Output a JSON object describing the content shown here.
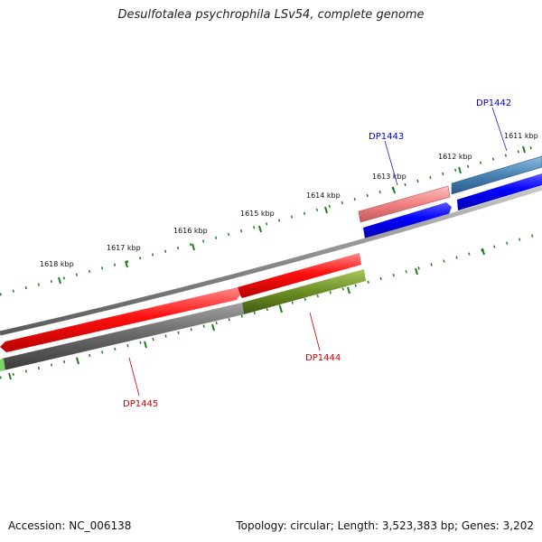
{
  "title": "Desulfotalea psychrophila LSv54, complete genome",
  "footer": {
    "accession": "Accession: NC_006138",
    "stats": "Topology: circular; Length: 3,523,383 bp; Genes: 3,202"
  },
  "colors": {
    "backbone": "#8a8a8a",
    "tick": "#1e7d1e",
    "forward_cds": "#ff0000",
    "reverse_cds": "#0000ff",
    "forward_label": "#cc0000",
    "reverse_label": "#0000cc",
    "gray_bar": "#666666",
    "olive_bar": "#6b8e23",
    "steelblue_bar": "#4682b4",
    "pink_bar": "#f08080",
    "green_bar": "#7cd36a"
  },
  "kbp_labels": [
    "1618 kbp",
    "1617 kbp",
    "1616 kbp",
    "1615 kbp",
    "1614 kbp",
    "1613 kbp",
    "1612 kbp",
    "1611 kbp"
  ],
  "gene_labels": [
    "DP1442",
    "DP1443",
    "DP1444",
    "DP1445"
  ]
}
